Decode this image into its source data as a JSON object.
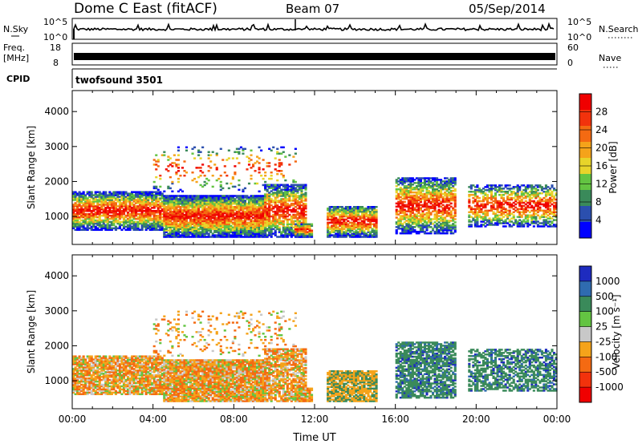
{
  "header": {
    "station": "Dome C East (fitACF)",
    "beam": "Beam 07",
    "date": "05/Sep/2014"
  },
  "noise_panel": {
    "left_label": "N.Sky",
    "left_ticks": [
      "10^5",
      "10^0"
    ],
    "right_label": "N.Search",
    "right_ticks": [
      "10^5",
      "10^0"
    ]
  },
  "freq_panel": {
    "left_label_1": "Freq.",
    "left_label_2": "[MHz]",
    "left_ticks": [
      "18",
      "8"
    ],
    "right_label": "Nave",
    "right_ticks": [
      "60",
      "0"
    ]
  },
  "cpid_panel": {
    "label": "CPID",
    "text": "twofsound 3501"
  },
  "colors": {
    "power": [
      "#0000ff",
      "#2b4fae",
      "#3a8a5a",
      "#63c442",
      "#e8d42a",
      "#f5a31a",
      "#f46a12",
      "#f2320c",
      "#f00000"
    ],
    "velocity": [
      "#f00000",
      "#f2320c",
      "#f46a12",
      "#f5a31a",
      "#c8c8c8",
      "#63c442",
      "#3a8a5a",
      "#2f6bb0",
      "#1e2bbf"
    ]
  },
  "chart_data": [
    {
      "type": "heatmap",
      "quantity": "Power",
      "ylabel": "Slant Range [km]",
      "yticks": [
        1000,
        2000,
        3000,
        4000
      ],
      "ylim": [
        200,
        4600
      ],
      "xticks": [
        "00:00",
        "04:00",
        "08:00",
        "12:00",
        "16:00",
        "20:00",
        "00:00"
      ],
      "xlim_hours": [
        0,
        24
      ],
      "colorbar": {
        "label": "Power [dB]",
        "ticks": [
          "28",
          "24",
          "20",
          "16",
          "12",
          "8",
          "4"
        ],
        "range": [
          0,
          30
        ]
      }
    },
    {
      "type": "heatmap",
      "quantity": "Velocity",
      "ylabel": "Slant Range [km]",
      "yticks": [
        1000,
        2000,
        3000,
        4000
      ],
      "ylim": [
        200,
        4600
      ],
      "xlabel": "Time UT",
      "xticks": [
        "00:00",
        "04:00",
        "08:00",
        "12:00",
        "16:00",
        "20:00",
        "00:00"
      ],
      "xlim_hours": [
        0,
        24
      ],
      "colorbar": {
        "label": "Velocity [m s⁻¹]",
        "ticks": [
          "1000",
          "500",
          "100",
          "25",
          "-25",
          "-100",
          "-500",
          "-1000"
        ],
        "range": [
          -1000,
          1000
        ]
      }
    }
  ]
}
